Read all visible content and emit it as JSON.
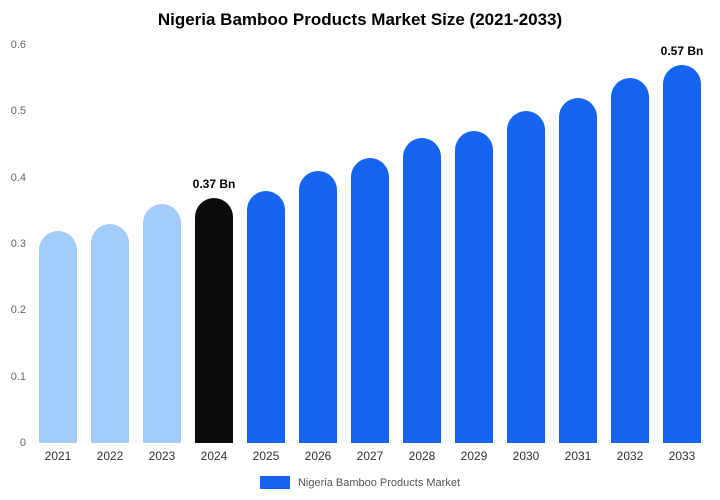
{
  "title": "Nigeria Bamboo Products Market Size (2021-2033)",
  "legend": {
    "label": "Nigeria Bamboo Products Market",
    "swatch_color": "#1565F0"
  },
  "colors": {
    "historical_bar": "#A2CBF8",
    "highlight_bar": "#0B0B0B",
    "forecast_bar": "#1565F0",
    "background": "#FFFFFF"
  },
  "chart_data": {
    "type": "bar",
    "title": "Nigeria Bamboo Products Market Size (2021-2033)",
    "categories": [
      "2021",
      "2022",
      "2023",
      "2024",
      "2025",
      "2026",
      "2027",
      "2028",
      "2029",
      "2030",
      "2031",
      "2032",
      "2033"
    ],
    "values": [
      0.32,
      0.33,
      0.36,
      0.37,
      0.38,
      0.41,
      0.43,
      0.46,
      0.47,
      0.5,
      0.52,
      0.55,
      0.57
    ],
    "bar_colors": [
      "#A2CBF8",
      "#A2CBF8",
      "#A2CBF8",
      "#0B0B0B",
      "#1565F0",
      "#1565F0",
      "#1565F0",
      "#1565F0",
      "#1565F0",
      "#1565F0",
      "#1565F0",
      "#1565F0",
      "#1565F0"
    ],
    "annotations": [
      {
        "index": 3,
        "label": "0.37 Bn"
      },
      {
        "index": 12,
        "label": "0.57 Bn"
      }
    ],
    "xlabel": "",
    "ylabel": "",
    "ylim": [
      0,
      0.6
    ],
    "y_ticks": [
      "0",
      "0.1",
      "0.2",
      "0.3",
      "0.4",
      "0.5",
      "0.6"
    ],
    "grid": false,
    "legend_position": "bottom",
    "legend_entries": [
      "Nigeria Bamboo Products Market"
    ]
  }
}
